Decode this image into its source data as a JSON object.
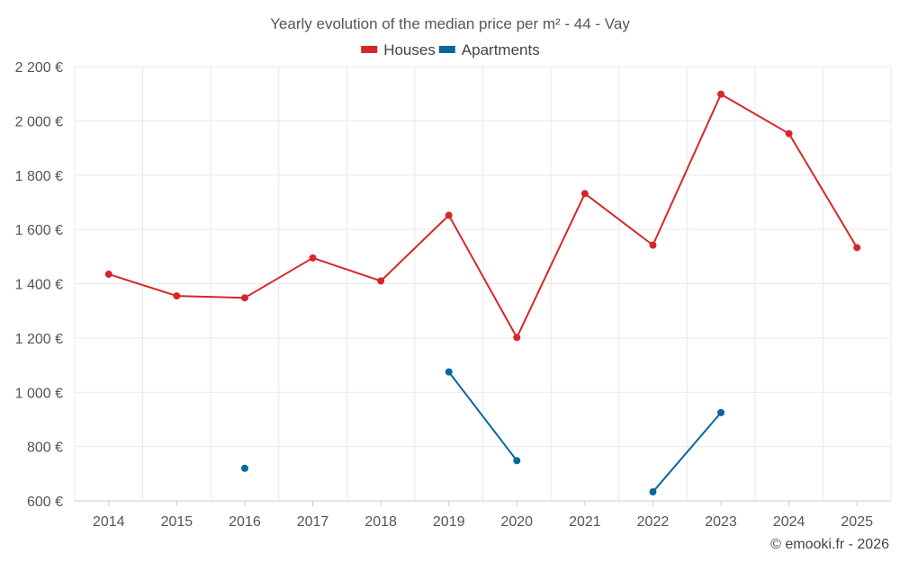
{
  "chart_data": {
    "type": "line",
    "title": "Yearly evolution of the median price per m² - 44 - Vay",
    "categories": [
      "2014",
      "2015",
      "2016",
      "2017",
      "2018",
      "2019",
      "2020",
      "2021",
      "2022",
      "2023",
      "2024",
      "2025"
    ],
    "ylim": [
      600,
      2200
    ],
    "yticks": [
      600,
      800,
      1000,
      1200,
      1400,
      1600,
      1800,
      2000,
      2200
    ],
    "ytick_labels": [
      "600 €",
      "800 €",
      "1 000 €",
      "1 200 €",
      "1 400 €",
      "1 600 €",
      "1 800 €",
      "2 000 €",
      "2 200 €"
    ],
    "xlabel": "",
    "ylabel": "",
    "grid": true,
    "legend_position": "top-center",
    "series": [
      {
        "name": "Houses",
        "color": "#d62728",
        "values": [
          1435,
          1355,
          1348,
          1495,
          1410,
          1652,
          1202,
          1732,
          1542,
          2098,
          1953,
          1533
        ]
      },
      {
        "name": "Apartments",
        "color": "#08679c",
        "values": [
          null,
          null,
          720,
          null,
          null,
          1075,
          748,
          null,
          633,
          925,
          null,
          null
        ]
      }
    ]
  },
  "credit": "© emooki.fr - 2026"
}
